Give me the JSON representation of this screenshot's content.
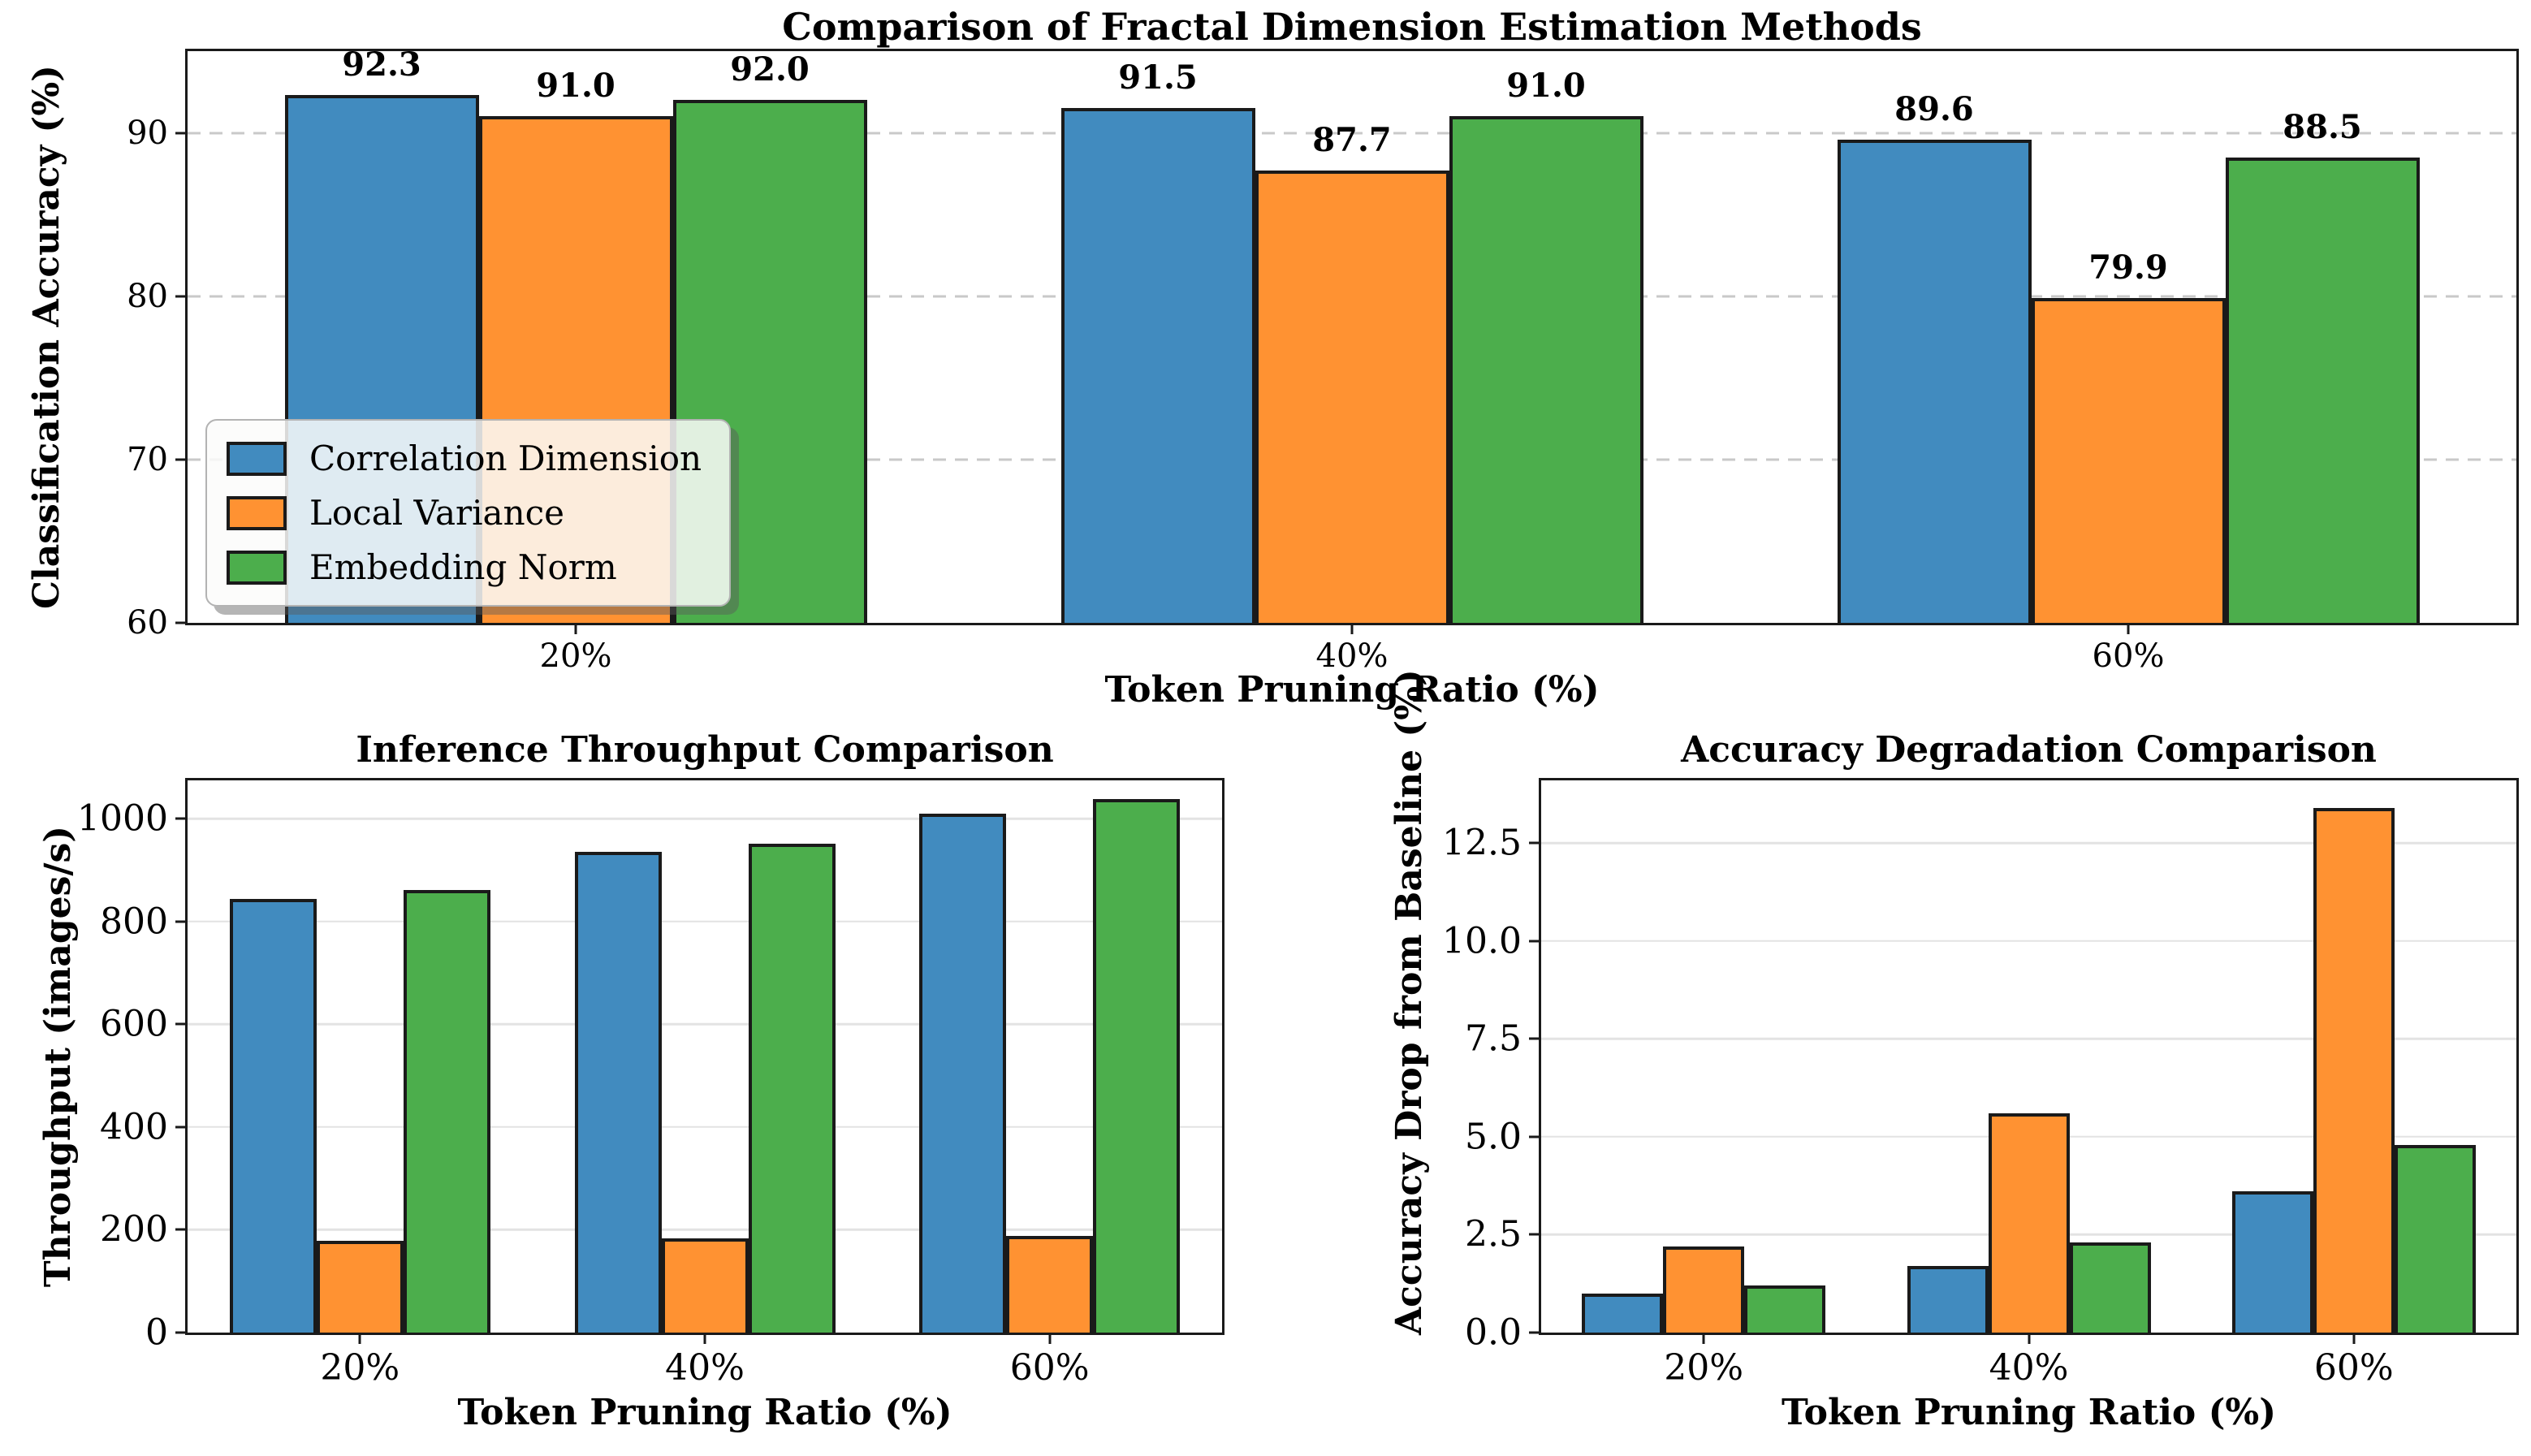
{
  "figure": {
    "background": "#ffffff"
  },
  "style": {
    "bar_edge_color": "#1a1a1a",
    "text_color": "#000000",
    "grid_color_dashed": "#c9c9c9",
    "grid_color_solid": "#e3e3e3",
    "legend_background": "#fcfcfa",
    "legend_border": "#b3b3b3",
    "series_colors": {
      "blue": "#418bbf",
      "orange": "#ff9232",
      "green": "#4cae4c"
    }
  },
  "chart_data": [
    {
      "type": "bar",
      "title": "Comparison of Fractal Dimension Estimation Methods",
      "xlabel": "Token Pruning Ratio (%)",
      "ylabel": "Classification Accuracy (%)",
      "categories": [
        "20%",
        "40%",
        "60%"
      ],
      "series": [
        {
          "name": "Correlation Dimension",
          "color": "#418bbf",
          "values": [
            92.3,
            91.5,
            89.6
          ]
        },
        {
          "name": "Local Variance",
          "color": "#ff9232",
          "values": [
            91.0,
            87.7,
            79.9
          ]
        },
        {
          "name": "Embedding Norm",
          "color": "#4cae4c",
          "values": [
            92.0,
            91.0,
            88.5
          ]
        }
      ],
      "ylim": [
        60,
        95
      ],
      "yticks": [
        60,
        70,
        80,
        90
      ],
      "ytick_labels": [
        "60",
        "70",
        "80",
        "90"
      ],
      "gridlines": {
        "values": [
          70,
          80,
          90
        ],
        "style": "dashed"
      },
      "value_labels": {
        "show": true,
        "decimals": 1
      },
      "legend": {
        "show": true,
        "location": "lower left"
      }
    },
    {
      "type": "bar",
      "title": "Inference Throughput Comparison",
      "xlabel": "Token Pruning Ratio (%)",
      "ylabel": "Throughput (images/s)",
      "categories": [
        "20%",
        "40%",
        "60%"
      ],
      "series": [
        {
          "name": "Correlation Dimension",
          "color": "#418bbf",
          "values": [
            845,
            936,
            1010
          ]
        },
        {
          "name": "Local Variance",
          "color": "#ff9232",
          "values": [
            178,
            184,
            188
          ]
        },
        {
          "name": "Embedding Norm",
          "color": "#4cae4c",
          "values": [
            861,
            952,
            1038
          ]
        }
      ],
      "ylim": [
        0,
        1075
      ],
      "yticks": [
        0,
        200,
        400,
        600,
        800,
        1000
      ],
      "ytick_labels": [
        "0",
        "200",
        "400",
        "600",
        "800",
        "1000"
      ],
      "gridlines": {
        "values": [
          200,
          400,
          600,
          800,
          1000
        ],
        "style": "solid"
      },
      "value_labels": {
        "show": false
      },
      "legend": {
        "show": false
      }
    },
    {
      "type": "bar",
      "title": "Accuracy Degradation Comparison",
      "xlabel": "Token Pruning Ratio (%)",
      "ylabel": "Accuracy Drop from Baseline (%)",
      "categories": [
        "20%",
        "40%",
        "60%"
      ],
      "series": [
        {
          "name": "Correlation Dimension",
          "color": "#418bbf",
          "values": [
            1.0,
            1.7,
            3.6
          ]
        },
        {
          "name": "Local Variance",
          "color": "#ff9232",
          "values": [
            2.2,
            5.6,
            13.4
          ]
        },
        {
          "name": "Embedding Norm",
          "color": "#4cae4c",
          "values": [
            1.2,
            2.3,
            4.8
          ]
        }
      ],
      "ylim": [
        0,
        14.1
      ],
      "yticks": [
        0,
        2.5,
        5,
        7.5,
        10,
        12.5
      ],
      "ytick_labels": [
        "0.0",
        "2.5",
        "5.0",
        "7.5",
        "10.0",
        "12.5"
      ],
      "gridlines": {
        "values": [
          2.5,
          5,
          7.5,
          10,
          12.5
        ],
        "style": "solid"
      },
      "value_labels": {
        "show": false
      },
      "legend": {
        "show": false
      }
    }
  ]
}
